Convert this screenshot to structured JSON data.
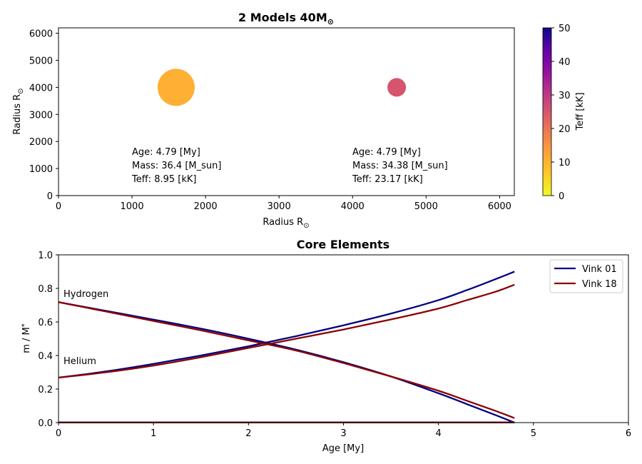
{
  "chart_data": [
    {
      "type": "scatter",
      "title": "2 Models 40M",
      "title_sub": "⊙",
      "xlabel": "Radius R",
      "ylabel": "Radius R",
      "label_sub": "⊙",
      "xlim": [
        0,
        6200
      ],
      "ylim": [
        0,
        6200
      ],
      "xticks": [
        "0",
        "1000",
        "2000",
        "3000",
        "4000",
        "5000",
        "6000"
      ],
      "yticks": [
        "0",
        "1000",
        "2000",
        "3000",
        "4000",
        "5000",
        "6000"
      ],
      "colorbar": {
        "label": "Teff [kK]",
        "range": [
          0,
          50
        ],
        "ticks": [
          "0",
          "10",
          "20",
          "30",
          "40",
          "50"
        ],
        "colormap": "plasma"
      },
      "points": [
        {
          "x": 1600,
          "y": 4000,
          "teff": 8.95,
          "size": 1,
          "color": "#fdb033"
        },
        {
          "x": 4600,
          "y": 4000,
          "teff": 23.17,
          "size": 0.25,
          "color": "#d6546e"
        }
      ],
      "annotations": [
        {
          "lines": [
            "Age: 4.79 [My]",
            "Mass: 36.4 [M_sun]",
            "Teff: 8.95 [kK]"
          ]
        },
        {
          "lines": [
            "Age: 4.79 [My]",
            "Mass: 34.38 [M_sun]",
            "Teff: 23.17 [kK]"
          ]
        }
      ]
    },
    {
      "type": "line",
      "title": "Core Elements",
      "xlabel": "Age [My]",
      "ylabel": "m / M",
      "ylabel_sub": "*",
      "xlim": [
        0,
        6
      ],
      "ylim": [
        0,
        1.0
      ],
      "xticks": [
        "0",
        "1",
        "2",
        "3",
        "4",
        "5",
        "6"
      ],
      "yticks": [
        "0.0",
        "0.2",
        "0.4",
        "0.6",
        "0.8",
        "1.0"
      ],
      "legend_position": "top-right",
      "element_labels": [
        "Hydrogen",
        "Helium"
      ],
      "series": [
        {
          "name": "Vink 01",
          "color": "#000080",
          "in_legend": true,
          "x": [
            0,
            0.5,
            1,
            1.5,
            2,
            2.5,
            3,
            3.5,
            4,
            4.3,
            4.6,
            4.8
          ],
          "y": [
            0.718,
            0.666,
            0.614,
            0.56,
            0.5,
            0.435,
            0.36,
            0.275,
            0.175,
            0.11,
            0.045,
            0.0
          ]
        },
        {
          "name": "Vink 01 helium",
          "color": "#000080",
          "in_legend": false,
          "x": [
            0,
            0.5,
            1,
            1.5,
            2,
            2.5,
            3,
            3.5,
            4,
            4.3,
            4.6,
            4.8
          ],
          "y": [
            0.268,
            0.305,
            0.35,
            0.4,
            0.455,
            0.515,
            0.58,
            0.65,
            0.73,
            0.79,
            0.855,
            0.9
          ]
        },
        {
          "name": "Vink 18",
          "color": "#8b0000",
          "in_legend": true,
          "x": [
            0,
            0.5,
            1,
            1.5,
            2,
            2.5,
            3,
            3.5,
            4,
            4.3,
            4.6,
            4.8
          ],
          "y": [
            0.718,
            0.662,
            0.606,
            0.55,
            0.49,
            0.43,
            0.355,
            0.275,
            0.19,
            0.13,
            0.07,
            0.027
          ]
        },
        {
          "name": "Vink 18 helium",
          "color": "#8b0000",
          "in_legend": false,
          "x": [
            0,
            0.5,
            1,
            1.5,
            2,
            2.5,
            3,
            3.5,
            4,
            4.3,
            4.6,
            4.8
          ],
          "y": [
            0.268,
            0.3,
            0.34,
            0.39,
            0.445,
            0.5,
            0.555,
            0.615,
            0.68,
            0.73,
            0.78,
            0.822
          ]
        },
        {
          "name": "Vink 01 other",
          "color": "#000080",
          "in_legend": false,
          "x": [
            0,
            4.8
          ],
          "y": [
            0.001,
            0.001
          ]
        },
        {
          "name": "Vink 18 other",
          "color": "#8b0000",
          "in_legend": false,
          "x": [
            0,
            4.8
          ],
          "y": [
            0.001,
            0.001
          ]
        }
      ]
    }
  ]
}
